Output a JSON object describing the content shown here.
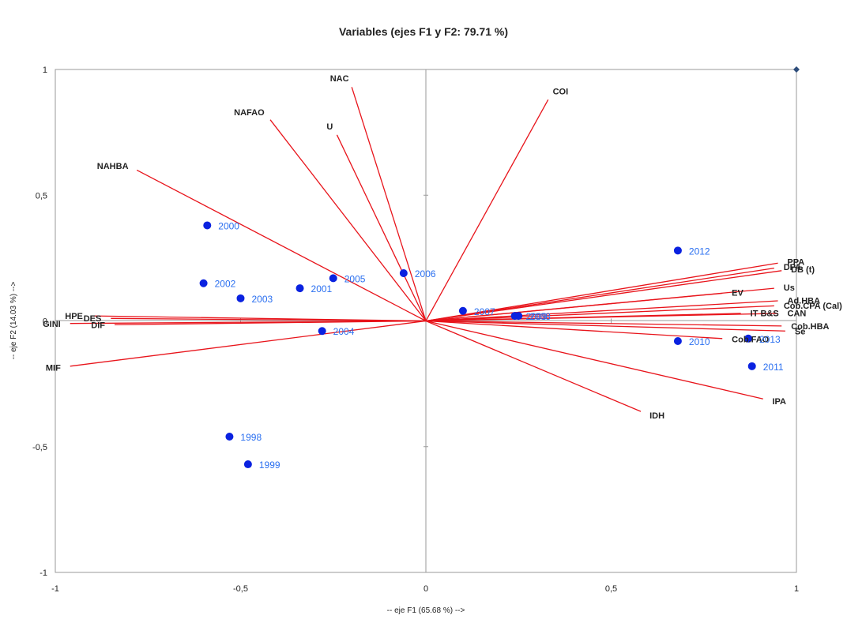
{
  "chart_data": {
    "type": "scatter",
    "title": "Variables (ejes F1 y F2: 79.71 %)",
    "xlabel": "-- eje F1 (65.68 %) -->",
    "ylabel": "-- eje F2 (14.03 %) -->",
    "xlim": [
      -1,
      1
    ],
    "ylim": [
      -1,
      1
    ],
    "x_ticks": [
      {
        "value": -1,
        "label": "-1"
      },
      {
        "value": -0.5,
        "label": "-0,5"
      },
      {
        "value": 0,
        "label": "0"
      },
      {
        "value": 0.5,
        "label": "0,5"
      },
      {
        "value": 1,
        "label": "1"
      }
    ],
    "y_ticks": [
      {
        "value": 1,
        "label": "1"
      },
      {
        "value": 0.5,
        "label": "0,5"
      },
      {
        "value": 0,
        "label": "0"
      },
      {
        "value": -0.5,
        "label": "-0,5"
      },
      {
        "value": -1,
        "label": "-1"
      }
    ],
    "grid": false,
    "vectors": [
      {
        "name": "NAC",
        "x": -0.2,
        "y": 0.93
      },
      {
        "name": "COI",
        "x": 0.33,
        "y": 0.88
      },
      {
        "name": "NAFAO",
        "x": -0.42,
        "y": 0.8
      },
      {
        "name": "U",
        "x": -0.24,
        "y": 0.74
      },
      {
        "name": "NAHBA",
        "x": -0.78,
        "y": 0.6
      },
      {
        "name": "HPE",
        "x": -0.9,
        "y": 0.02
      },
      {
        "name": "DES",
        "x": -0.85,
        "y": 0.01
      },
      {
        "name": "GINI",
        "x": -0.96,
        "y": -0.01
      },
      {
        "name": "DIF",
        "x": -0.84,
        "y": -0.015
      },
      {
        "name": "MIF",
        "x": -0.96,
        "y": -0.18
      },
      {
        "name": "IDH",
        "x": 0.58,
        "y": -0.36
      },
      {
        "name": "IPA",
        "x": 0.91,
        "y": -0.31
      },
      {
        "name": "PPA",
        "x": 0.95,
        "y": 0.23
      },
      {
        "name": "DPA",
        "x": 0.94,
        "y": 0.21
      },
      {
        "name": "DB (t)",
        "x": 0.96,
        "y": 0.2
      },
      {
        "name": "Us",
        "x": 0.94,
        "y": 0.13
      },
      {
        "name": "EV",
        "x": 0.8,
        "y": 0.11
      },
      {
        "name": "Ad.HBA",
        "x": 0.95,
        "y": 0.08
      },
      {
        "name": "Cob.CPA (Cal)",
        "x": 0.94,
        "y": 0.06
      },
      {
        "name": "IT B&S",
        "x": 0.85,
        "y": 0.03
      },
      {
        "name": "CAN",
        "x": 0.95,
        "y": 0.03
      },
      {
        "name": "Cob.HBA",
        "x": 0.96,
        "y": -0.02
      },
      {
        "name": "Se",
        "x": 0.97,
        "y": -0.04
      },
      {
        "name": "Cob.FAO",
        "x": 0.8,
        "y": -0.07
      }
    ],
    "points": [
      {
        "label": "1998",
        "x": -0.53,
        "y": -0.46
      },
      {
        "label": "1999",
        "x": -0.48,
        "y": -0.57
      },
      {
        "label": "2000",
        "x": -0.59,
        "y": 0.38
      },
      {
        "label": "2001",
        "x": -0.34,
        "y": 0.13
      },
      {
        "label": "2002",
        "x": -0.6,
        "y": 0.15
      },
      {
        "label": "2003",
        "x": -0.5,
        "y": 0.09
      },
      {
        "label": "2004",
        "x": -0.28,
        "y": -0.04
      },
      {
        "label": "2005",
        "x": -0.25,
        "y": 0.17
      },
      {
        "label": "2006",
        "x": -0.06,
        "y": 0.19
      },
      {
        "label": "2007",
        "x": 0.1,
        "y": 0.04
      },
      {
        "label": "2008",
        "x": 0.25,
        "y": 0.02
      },
      {
        "label": "2009",
        "x": 0.24,
        "y": 0.02
      },
      {
        "label": "2010",
        "x": 0.68,
        "y": -0.08
      },
      {
        "label": "2011",
        "x": 0.88,
        "y": -0.18
      },
      {
        "label": "2012",
        "x": 0.68,
        "y": 0.28
      },
      {
        "label": "2013",
        "x": 0.87,
        "y": -0.07
      }
    ],
    "corner_marker": {
      "x": 1,
      "y": 1
    },
    "colors": {
      "vector": "#e8141b",
      "point": "#0a22e0",
      "point_label": "#2a6ff0",
      "corner_marker": "#2e4d7b"
    }
  }
}
